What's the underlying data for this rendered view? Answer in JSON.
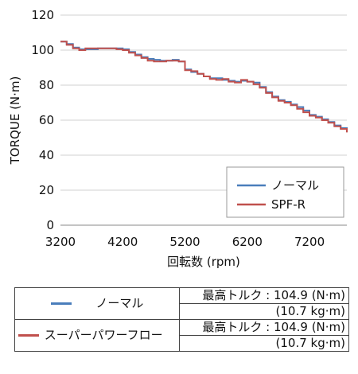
{
  "chart_data": {
    "type": "line",
    "ylabel": "TORQUE (N·m)",
    "xlabel": "回転数 (rpm)",
    "xlim": [
      3200,
      7800
    ],
    "ylim": [
      0,
      120
    ],
    "xticks": [
      3200,
      4200,
      5200,
      6200,
      7200
    ],
    "yticks": [
      0,
      20,
      40,
      60,
      80,
      100,
      120
    ],
    "grid": "horizontal",
    "legend_position": "bottom-right",
    "series": [
      {
        "name": "ノーマル",
        "color": "#4a7ebb",
        "x": [
          3200,
          3300,
          3400,
          3500,
          3600,
          3700,
          3800,
          3900,
          4000,
          4100,
          4200,
          4300,
          4400,
          4500,
          4600,
          4700,
          4800,
          4900,
          5000,
          5100,
          5200,
          5300,
          5400,
          5500,
          5600,
          5700,
          5800,
          5900,
          6000,
          6100,
          6200,
          6300,
          6400,
          6500,
          6600,
          6700,
          6800,
          6900,
          7000,
          7100,
          7200,
          7300,
          7400,
          7500,
          7600,
          7700,
          7800
        ],
        "values": [
          104.9,
          103.5,
          101.5,
          100.5,
          100.5,
          100.5,
          101.0,
          101.0,
          101.0,
          101.0,
          100.5,
          99.0,
          97.5,
          96.0,
          95.0,
          94.5,
          94.0,
          94.0,
          94.5,
          93.5,
          89.0,
          87.5,
          86.5,
          85.0,
          84.0,
          84.0,
          83.0,
          82.5,
          82.0,
          82.5,
          82.0,
          81.5,
          79.0,
          76.0,
          73.5,
          71.5,
          70.5,
          69.0,
          67.5,
          65.5,
          63.0,
          62.0,
          60.5,
          59.0,
          57.0,
          55.5,
          53.5
        ]
      },
      {
        "name": "SPF-R",
        "color": "#c0504d",
        "x": [
          3200,
          3300,
          3400,
          3500,
          3600,
          3700,
          3800,
          3900,
          4000,
          4100,
          4200,
          4300,
          4400,
          4500,
          4600,
          4700,
          4800,
          4900,
          5000,
          5100,
          5200,
          5300,
          5400,
          5500,
          5600,
          5700,
          5800,
          5900,
          6000,
          6100,
          6200,
          6300,
          6400,
          6500,
          6600,
          6700,
          6800,
          6900,
          7000,
          7100,
          7200,
          7300,
          7400,
          7500,
          7600,
          7700,
          7800
        ],
        "values": [
          104.9,
          103.0,
          101.0,
          100.0,
          101.0,
          101.0,
          101.0,
          101.0,
          101.0,
          100.5,
          100.0,
          98.5,
          97.0,
          95.5,
          94.0,
          93.5,
          93.5,
          94.0,
          94.0,
          93.5,
          88.5,
          88.0,
          86.5,
          85.0,
          83.5,
          83.0,
          83.5,
          82.0,
          81.5,
          83.0,
          82.0,
          80.5,
          78.5,
          75.5,
          73.0,
          71.0,
          70.0,
          68.5,
          66.5,
          64.5,
          62.5,
          61.5,
          60.0,
          58.5,
          56.5,
          55.0,
          53.0
        ]
      }
    ]
  },
  "spec_table": {
    "rows": [
      {
        "name": "ノーマル",
        "color": "#4a7ebb",
        "max_torque": "最高トルク : 104.9 (N·m)",
        "kg": "(10.7 kg·m)"
      },
      {
        "name": "スーパーパワーフロー",
        "color": "#c0504d",
        "max_torque": "最高トルク : 104.9 (N·m)",
        "kg": "(10.7 kg·m)"
      }
    ]
  }
}
